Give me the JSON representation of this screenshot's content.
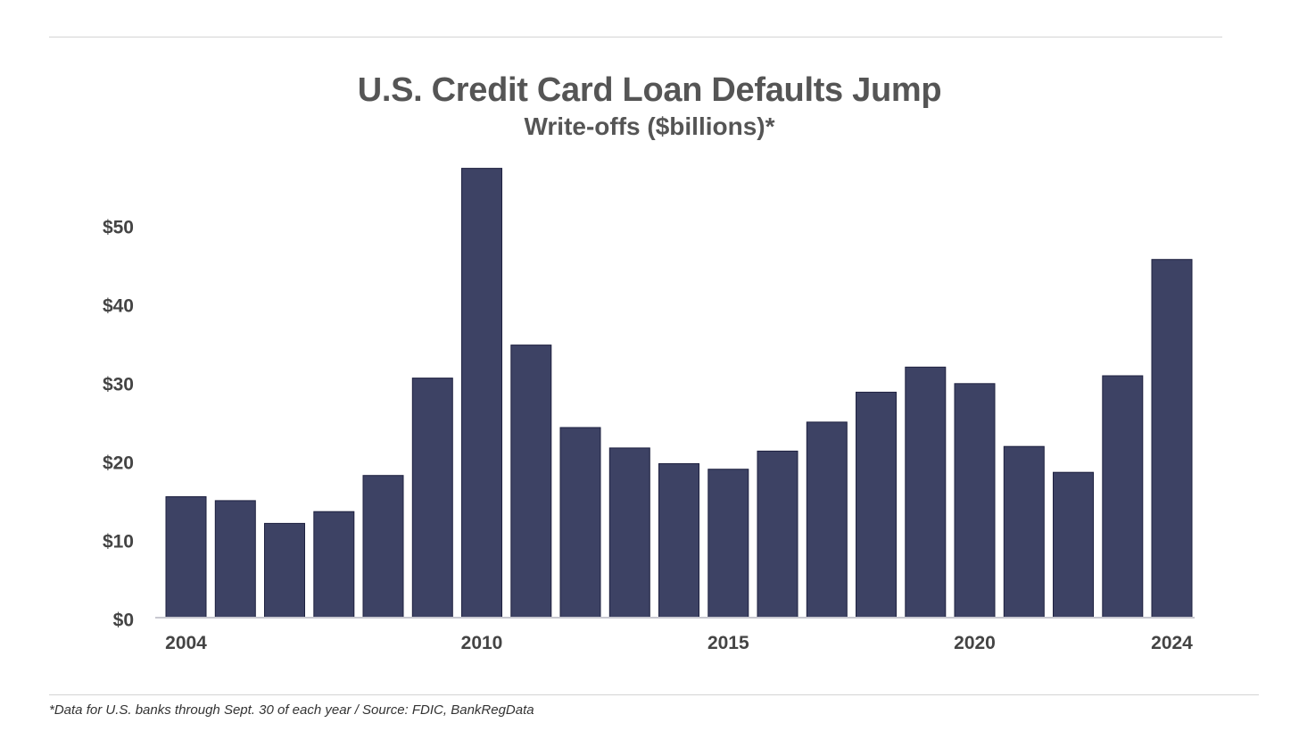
{
  "chart_data": {
    "type": "bar",
    "title": "U.S. Credit Card Loan Defaults Jump",
    "subtitle": "Write-offs ($billions)*",
    "categories": [
      "2004",
      "2005",
      "2006",
      "2007",
      "2008",
      "2009",
      "2010",
      "2011",
      "2012",
      "2013",
      "2014",
      "2015",
      "2016",
      "2017",
      "2018",
      "2019",
      "2020",
      "2021",
      "2022",
      "2023",
      "2024"
    ],
    "x_tick_labels": [
      "2004",
      "2010",
      "2015",
      "2020",
      "2024"
    ],
    "values": [
      15.4,
      14.9,
      12.0,
      13.5,
      18.1,
      30.5,
      57.2,
      34.7,
      24.2,
      21.6,
      19.6,
      18.9,
      21.2,
      24.9,
      28.7,
      31.9,
      29.8,
      21.8,
      18.5,
      30.8,
      45.6
    ],
    "y_tick_labels": [
      "$0",
      "$10",
      "$20",
      "$30",
      "$40",
      "$50"
    ],
    "ylim": [
      0,
      57.2
    ],
    "bar_color": "#3d4264",
    "grid": false,
    "footnote": "*Data for U.S. banks through Sept. 30 of each year / Source: FDIC, BankRegData"
  }
}
